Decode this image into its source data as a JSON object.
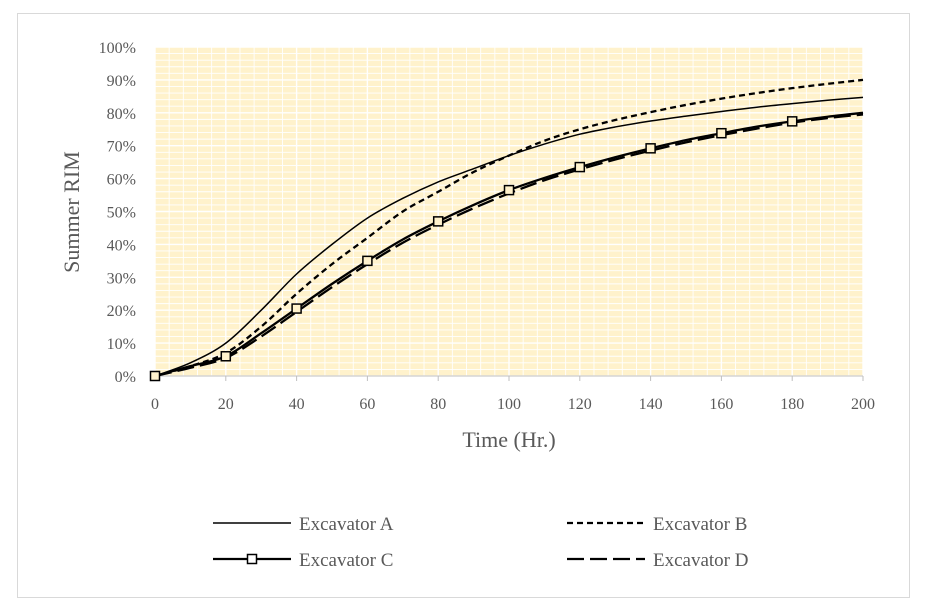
{
  "chart_data": {
    "type": "line",
    "title": "",
    "xlabel": "Time (Hr.)",
    "ylabel": "Summer RIM",
    "xlim": [
      0,
      200
    ],
    "ylim": [
      0,
      100
    ],
    "x_ticks": [
      0,
      20,
      40,
      60,
      80,
      100,
      120,
      140,
      160,
      180,
      200
    ],
    "x_tick_labels": [
      "0",
      "20",
      "40",
      "60",
      "80",
      "100",
      "120",
      "140",
      "160",
      "180",
      "200"
    ],
    "y_ticks": [
      0,
      10,
      20,
      30,
      40,
      50,
      60,
      70,
      80,
      90,
      100
    ],
    "y_tick_labels": [
      "0%",
      "10%",
      "20%",
      "30%",
      "40%",
      "50%",
      "60%",
      "70%",
      "80%",
      "90%",
      "100%"
    ],
    "grid": true,
    "plot_background": "#fff2cc",
    "grid_color": "#ffffff",
    "legend_position": "bottom",
    "x": [
      0,
      10,
      20,
      30,
      40,
      50,
      60,
      70,
      80,
      90,
      100,
      110,
      120,
      130,
      140,
      150,
      160,
      170,
      180,
      190,
      200
    ],
    "series": [
      {
        "name": "Excavator A",
        "style": "solid-thin",
        "values": [
          0,
          4,
          10,
          20,
          31,
          40,
          48,
          54,
          59,
          63,
          67,
          70.5,
          73.5,
          75.7,
          77.5,
          79,
          80.4,
          81.7,
          82.8,
          83.8,
          84.7
        ]
      },
      {
        "name": "Excavator B",
        "style": "dashed-short",
        "values": [
          0,
          3,
          7,
          15,
          25,
          34,
          42,
          50,
          56,
          62,
          67,
          71.5,
          75,
          77.8,
          80.2,
          82.4,
          84.3,
          86,
          87.5,
          88.8,
          90
        ]
      },
      {
        "name": "Excavator C",
        "style": "solid-square-markers",
        "values": [
          0,
          3,
          6,
          13,
          20.5,
          28,
          35,
          41.5,
          47,
          52,
          56.5,
          60.2,
          63.5,
          66.5,
          69.2,
          71.7,
          73.8,
          75.8,
          77.4,
          78.8,
          80
        ]
      },
      {
        "name": "Excavator D",
        "style": "dashed-long",
        "values": [
          0,
          2.5,
          5.5,
          12,
          19.5,
          27,
          34,
          40.5,
          46,
          51,
          55.5,
          59.5,
          62.8,
          65.8,
          68.5,
          71,
          73.2,
          75.2,
          77,
          78.4,
          79.5
        ]
      }
    ],
    "marker_x": [
      0,
      20,
      40,
      60,
      80,
      100,
      120,
      140,
      160,
      180
    ]
  }
}
